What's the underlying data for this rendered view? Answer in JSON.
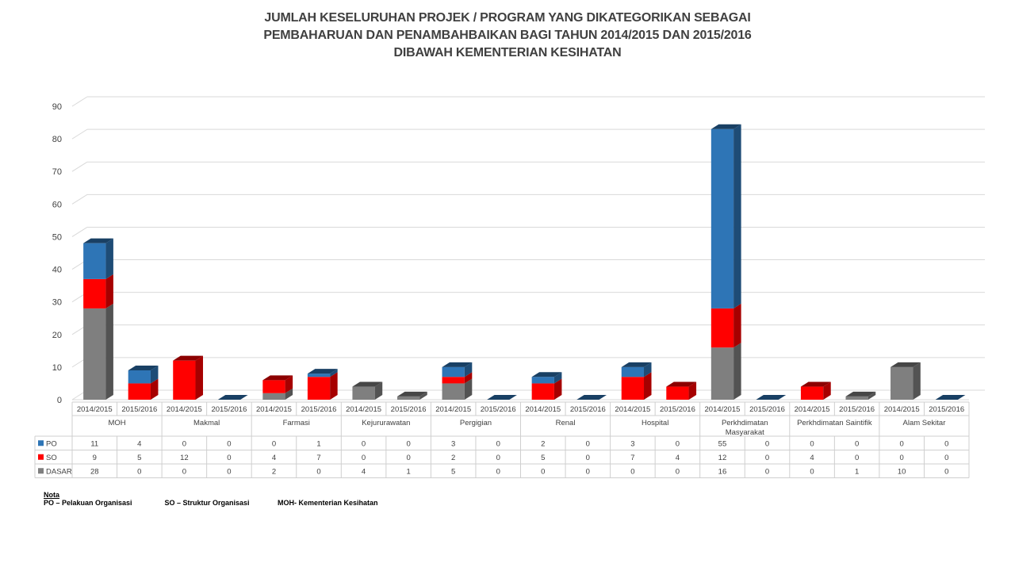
{
  "title_lines": [
    "JUMLAH KESELURUHAN PROJEK / PROGRAM YANG DIKATEGORIKAN SEBAGAI",
    "PEMBAHARUAN DAN PENAMBAHBAIKAN BAGI TAHUN 2014/2015 DAN 2015/2016",
    "DIBAWAH KEMENTERIAN KESIHATAN"
  ],
  "chart_data": {
    "type": "bar",
    "stacked": true,
    "three_d": true,
    "ylim": [
      0,
      90
    ],
    "yticks": [
      0,
      10,
      20,
      30,
      40,
      50,
      60,
      70,
      80,
      90
    ],
    "grid": true,
    "legend": "data-table-below",
    "groups": [
      "MOH",
      "Makmal",
      "Farmasi",
      "Kejururawatan",
      "Pergigian",
      "Renal",
      "Hospital",
      "Perkhdimatan Masyarakat",
      "Perkhdimatan Saintifik",
      "Alam Sekitar"
    ],
    "years": [
      "2014/2015",
      "2015/2016"
    ],
    "series": [
      {
        "name": "PO",
        "color": "#2E75B6",
        "values": [
          11,
          4,
          0,
          0,
          0,
          1,
          0,
          0,
          3,
          0,
          2,
          0,
          3,
          0,
          55,
          0,
          0,
          0,
          0,
          0
        ]
      },
      {
        "name": "SO",
        "color": "#FF0000",
        "values": [
          9,
          5,
          12,
          0,
          4,
          7,
          0,
          0,
          2,
          0,
          5,
          0,
          7,
          4,
          12,
          0,
          4,
          0,
          0,
          0
        ]
      },
      {
        "name": "DASAR",
        "color": "#7F7F7F",
        "values": [
          28,
          0,
          0,
          0,
          2,
          0,
          4,
          1,
          5,
          0,
          0,
          0,
          0,
          0,
          16,
          0,
          0,
          1,
          10,
          0
        ]
      }
    ]
  },
  "nota": {
    "heading": "Nota",
    "items": [
      "PO – Pelakuan Organisasi",
      "SO – Struktur Organisasi",
      "MOH- Kementerian Kesihatan"
    ]
  }
}
